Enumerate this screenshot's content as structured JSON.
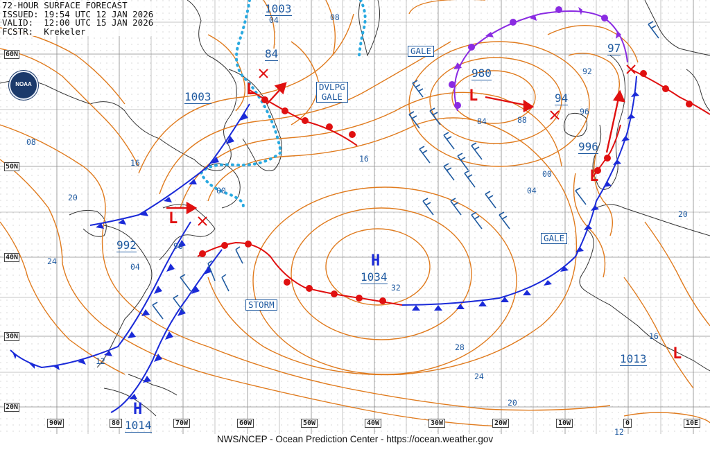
{
  "header": {
    "line1": "72-HOUR SURFACE FORECAST",
    "line2": "ISSUED: 19:54 UTC 12 JAN 2026",
    "line3": "VALID:  12:00 UTC 15 JAN 2026",
    "line4": "FCSTR:  Krekeler"
  },
  "logo": {
    "text": "NOAA"
  },
  "footer": "NWS/NCEP - Ocean Prediction Center - https://ocean.weather.gov",
  "lat_labels": [
    "60N",
    "50N",
    "40N",
    "30N",
    "20N"
  ],
  "lon_labels": [
    "90W",
    "80",
    "70W",
    "60W",
    "50W",
    "40W",
    "30W",
    "20W",
    "10W",
    "0",
    "10E"
  ],
  "pressure_centers": [
    {
      "type": "L",
      "value": "1003"
    },
    {
      "type": "L",
      "value": "992"
    },
    {
      "type": "L",
      "value": "980"
    },
    {
      "type": "L",
      "value": "996"
    },
    {
      "type": "L",
      "value": "1013"
    },
    {
      "type": "H",
      "value": "1034"
    },
    {
      "type": "H",
      "value": "1014"
    },
    {
      "type": "L",
      "value": "1003"
    }
  ],
  "warnings": {
    "gale_north": "GALE",
    "dvlpg_gale": [
      "DVLPG",
      "GALE"
    ],
    "storm": "STORM",
    "gale_east": "GALE"
  },
  "isobar_labels": [
    "04",
    "08",
    "84",
    "08",
    "16",
    "20",
    "24",
    "04",
    "96",
    "00",
    "12",
    "16",
    "32",
    "28",
    "24",
    "20",
    "84",
    "88",
    "94",
    "92",
    "96",
    "00",
    "04",
    "97",
    "20",
    "16",
    "12"
  ],
  "colors": {
    "isobar": "#e07b1e",
    "cold_front": "#1a2ad8",
    "warm_front": "#e01010",
    "occluded": "#8a2be2",
    "low": "#e01010",
    "high": "#1a2ad8",
    "label": "#1f5aa0",
    "land": "#333333",
    "grid": "#9a9a9a"
  }
}
